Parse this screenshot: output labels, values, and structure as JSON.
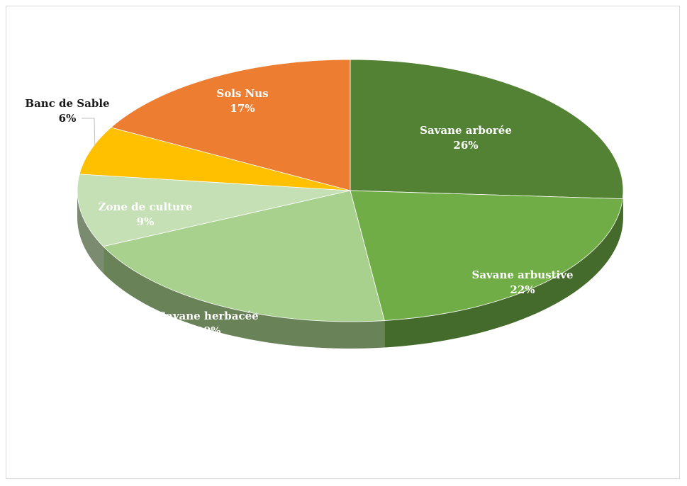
{
  "chart_data": {
    "type": "pie",
    "title": "",
    "slices": [
      {
        "label": "Savane arborée",
        "pct_label": "26%",
        "value": 26,
        "color": "#548235"
      },
      {
        "label": "Savane arbustive",
        "pct_label": "22%",
        "value": 22,
        "color": "#70ad47"
      },
      {
        "label": "Savane herbacée",
        "pct_label": "20%",
        "value": 20,
        "color": "#a9d18e"
      },
      {
        "label": "Zone de culture",
        "pct_label": "9%",
        "value": 9,
        "color": "#c5e0b4"
      },
      {
        "label": "Banc de Sable",
        "pct_label": "6%",
        "value": 6,
        "color": "#ffc000"
      },
      {
        "label": "Sols Nus",
        "pct_label": "17%",
        "value": 17,
        "color": "#ed7d31"
      }
    ],
    "legend": "none",
    "style": "3d-tilted"
  }
}
